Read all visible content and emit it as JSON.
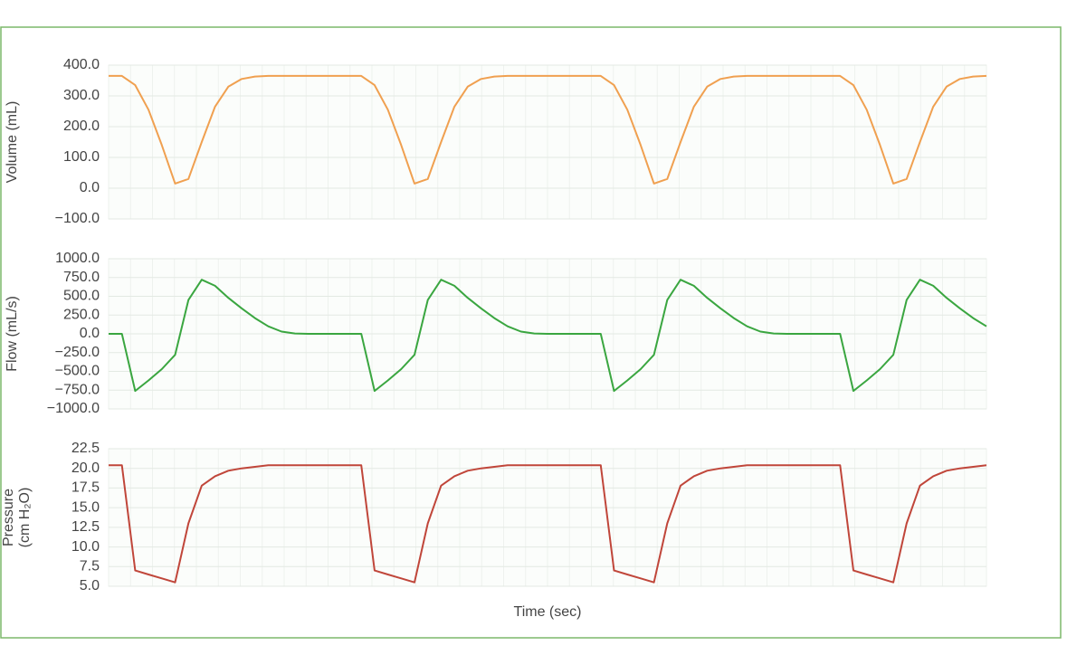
{
  "chart_data": [
    {
      "type": "line",
      "ylabel": [
        "Volume (mL)"
      ],
      "color": "#f0a050",
      "ylim": [
        -100,
        400
      ],
      "yticks": [
        {
          "value": -100,
          "label": "−100.0"
        },
        {
          "value": 0,
          "label": "0.0"
        },
        {
          "value": 100,
          "label": "100.0"
        },
        {
          "value": 200,
          "label": "200.0"
        },
        {
          "value": 300,
          "label": "300.0"
        },
        {
          "value": 400,
          "label": "400.0"
        }
      ],
      "values": [
        365,
        365,
        335,
        255,
        140,
        15,
        30,
        150,
        265,
        330,
        355,
        363,
        365,
        365,
        365,
        365,
        365,
        365,
        365,
        365,
        335,
        255,
        140,
        15,
        30,
        150,
        265,
        330,
        355,
        363,
        365,
        365,
        365,
        365,
        365,
        365,
        365,
        365,
        335,
        255,
        140,
        15,
        30,
        150,
        265,
        330,
        355,
        363,
        365,
        365,
        365,
        365,
        365,
        365,
        365,
        365,
        335,
        255,
        140,
        15,
        30,
        150,
        265,
        330,
        355,
        363,
        365
      ]
    },
    {
      "type": "line",
      "ylabel": [
        "Flow (mL/s)"
      ],
      "color": "#3aa640",
      "ylim": [
        -1000,
        1000
      ],
      "yticks": [
        {
          "value": -1000,
          "label": "−1000.0"
        },
        {
          "value": -750,
          "label": "−750.0"
        },
        {
          "value": -500,
          "label": "−500.0"
        },
        {
          "value": -250,
          "label": "−250.0"
        },
        {
          "value": 0,
          "label": "0.0"
        },
        {
          "value": 250,
          "label": "250.0"
        },
        {
          "value": 500,
          "label": "500.0"
        },
        {
          "value": 750,
          "label": "750.0"
        },
        {
          "value": 1000,
          "label": "1000.0"
        }
      ],
      "values": [
        0,
        0,
        -760,
        -620,
        -470,
        -280,
        450,
        720,
        640,
        480,
        340,
        210,
        100,
        30,
        5,
        0,
        0,
        0,
        0,
        0,
        -760,
        -620,
        -470,
        -280,
        450,
        720,
        640,
        480,
        340,
        210,
        100,
        30,
        5,
        0,
        0,
        0,
        0,
        0,
        -760,
        -620,
        -470,
        -280,
        450,
        720,
        640,
        480,
        340,
        210,
        100,
        30,
        5,
        0,
        0,
        0,
        0,
        0,
        -760,
        -620,
        -470,
        -280,
        450,
        720,
        640,
        480,
        340,
        210,
        100
      ]
    },
    {
      "type": "line",
      "ylabel": [
        "Pressure",
        "(cm H₂O)"
      ],
      "color": "#c0463a",
      "xlabel": "Time (sec)",
      "ylim": [
        5,
        22.5
      ],
      "yticks": [
        {
          "value": 5,
          "label": "5.0"
        },
        7.5,
        {
          "value": 10,
          "label": "10.0"
        },
        12.5,
        {
          "value": 15,
          "label": "15.0"
        },
        17.5,
        {
          "value": 20,
          "label": "20.0"
        },
        22.5
      ],
      "values": [
        20.4,
        20.4,
        7.0,
        6.5,
        6.0,
        5.5,
        13,
        17.8,
        19.0,
        19.7,
        20.0,
        20.2,
        20.4,
        20.4,
        20.4,
        20.4,
        20.4,
        20.4,
        20.4,
        20.4,
        7.0,
        6.5,
        6.0,
        5.5,
        13,
        17.8,
        19.0,
        19.7,
        20.0,
        20.2,
        20.4,
        20.4,
        20.4,
        20.4,
        20.4,
        20.4,
        20.4,
        20.4,
        7.0,
        6.5,
        6.0,
        5.5,
        13,
        17.8,
        19.0,
        19.7,
        20.0,
        20.2,
        20.4,
        20.4,
        20.4,
        20.4,
        20.4,
        20.4,
        20.4,
        20.4,
        7.0,
        6.5,
        6.0,
        5.5,
        13,
        17.8,
        19.0,
        19.7,
        20.0,
        20.2,
        20.4
      ]
    }
  ]
}
